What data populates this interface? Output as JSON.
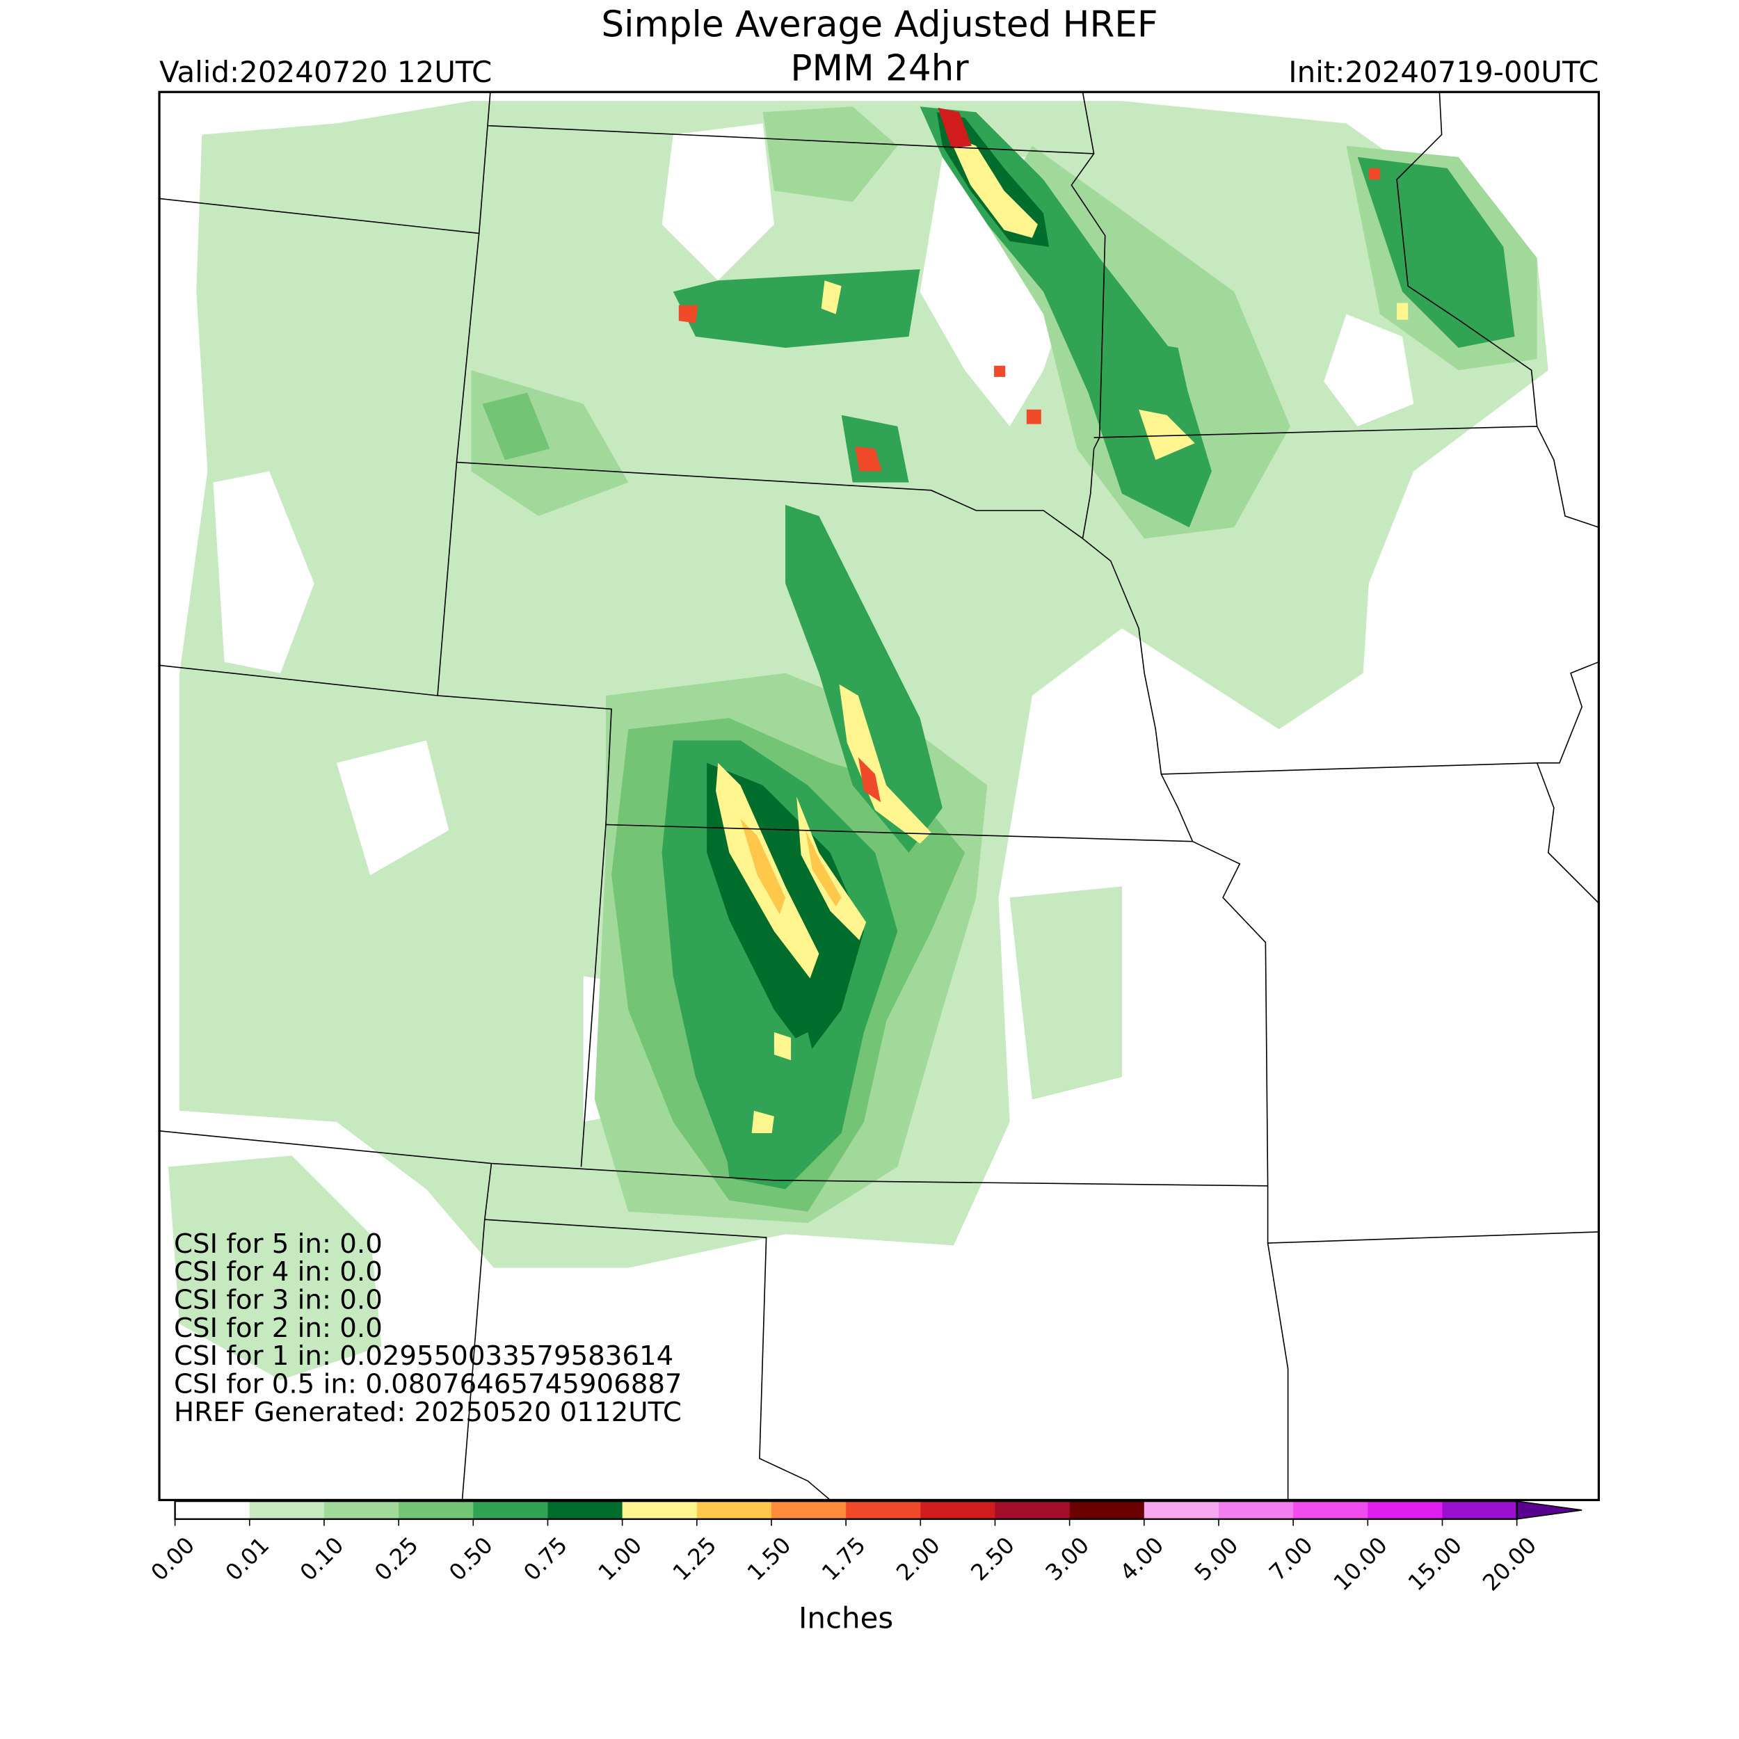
{
  "header": {
    "title": [
      "Simple Average Adjusted HREF",
      "PMM 24hr"
    ],
    "valid": "Valid:20240720 12UTC",
    "init": "Init:20240719-00UTC"
  },
  "stats": [
    "CSI for 5 in: 0.0",
    "CSI for 4 in: 0.0",
    "CSI for 3 in: 0.0",
    "CSI for 2 in: 0.0",
    "CSI for 1 in: 0.029550033579583614",
    "CSI for 0.5 in: 0.08076465745906887",
    "HREF Generated: 20250520 0112UTC"
  ],
  "colorbar": {
    "label": "Inches",
    "ticks": [
      "0.00",
      "0.01",
      "0.10",
      "0.25",
      "0.50",
      "0.75",
      "1.00",
      "1.25",
      "1.50",
      "1.75",
      "2.00",
      "2.50",
      "3.00",
      "4.00",
      "5.00",
      "7.00",
      "10.00",
      "15.00",
      "20.00"
    ],
    "colors": [
      "#ffffff",
      "#c7e9c0",
      "#a1d99b",
      "#74c476",
      "#31a354",
      "#006d2c",
      "#fff68f",
      "#ffc84a",
      "#ff8c3a",
      "#f04a2a",
      "#d01c1c",
      "#a50e2a",
      "#6b0000",
      "#f7a8f0",
      "#f27ef0",
      "#f04cf0",
      "#e01ef0",
      "#9a10d0"
    ],
    "extend_color": "#5a0090"
  }
}
